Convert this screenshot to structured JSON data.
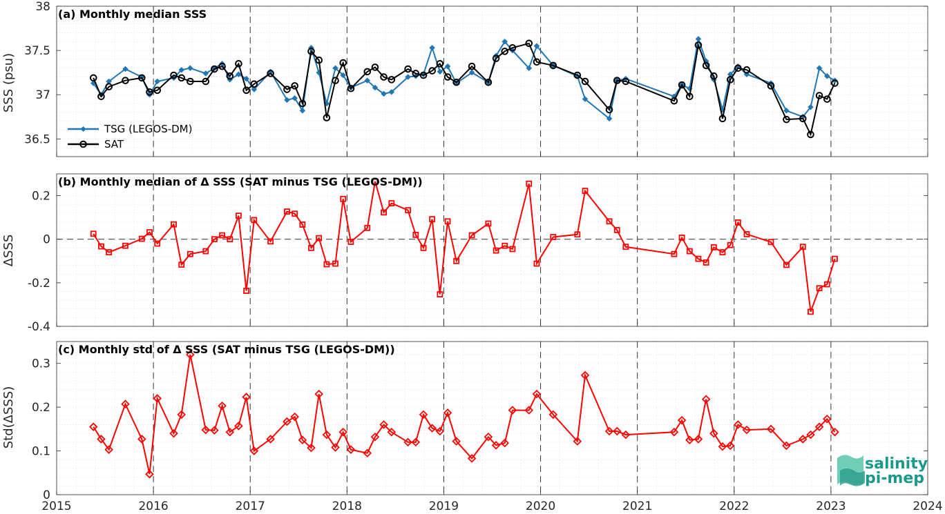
{
  "chart_data": [
    {
      "type": "line",
      "title": "(a) Monthly median SSS",
      "ylabel": "SSS (psu)",
      "xlim": [
        2015,
        2024
      ],
      "ylim": [
        36.3,
        38
      ],
      "yticks": [
        "36.5",
        "37",
        "37.5",
        "38"
      ],
      "legend_position": "lower-left",
      "grid": true,
      "series": [
        {
          "name": "TSG (LEGOS-DM)",
          "color": "#1f77b4",
          "marker": "diamond",
          "x": [
            2015.38,
            2015.46,
            2015.54,
            2015.71,
            2015.88,
            2015.96,
            2016.04,
            2016.21,
            2016.29,
            2016.38,
            2016.54,
            2016.63,
            2016.71,
            2016.79,
            2016.88,
            2016.96,
            2017.04,
            2017.21,
            2017.38,
            2017.46,
            2017.54,
            2017.63,
            2017.71,
            2017.79,
            2017.88,
            2017.96,
            2018.04,
            2018.21,
            2018.29,
            2018.38,
            2018.46,
            2018.63,
            2018.71,
            2018.79,
            2018.88,
            2018.96,
            2019.04,
            2019.13,
            2019.29,
            2019.46,
            2019.54,
            2019.63,
            2019.71,
            2019.88,
            2019.96,
            2020.13,
            2020.38,
            2020.46,
            2020.71,
            2020.79,
            2020.88,
            2021.38,
            2021.46,
            2021.54,
            2021.63,
            2021.71,
            2021.79,
            2021.88,
            2021.96,
            2022.04,
            2022.13,
            2022.38,
            2022.54,
            2022.71,
            2022.79,
            2022.88,
            2022.96,
            2023.04
          ],
          "y": [
            37.13,
            37.0,
            37.15,
            37.29,
            37.2,
            37.0,
            37.15,
            37.19,
            37.28,
            37.3,
            37.24,
            37.3,
            37.35,
            37.17,
            37.23,
            37.18,
            37.06,
            37.26,
            36.94,
            36.96,
            36.82,
            37.53,
            37.25,
            36.9,
            37.3,
            37.22,
            37.08,
            37.16,
            37.08,
            37.01,
            37.03,
            37.2,
            37.21,
            37.23,
            37.53,
            37.26,
            37.32,
            37.13,
            37.25,
            37.14,
            37.44,
            37.6,
            37.5,
            37.3,
            37.55,
            37.33,
            37.21,
            36.95,
            36.73,
            37.16,
            37.18,
            36.98,
            37.11,
            37.07,
            37.63,
            37.38,
            37.17,
            36.83,
            37.23,
            37.32,
            37.23,
            37.13,
            36.82,
            36.75,
            36.86,
            37.3,
            37.21,
            37.16
          ]
        },
        {
          "name": "SAT",
          "color": "#000000",
          "marker": "circle",
          "x": [
            2015.38,
            2015.46,
            2015.54,
            2015.71,
            2015.88,
            2015.96,
            2016.04,
            2016.21,
            2016.29,
            2016.38,
            2016.54,
            2016.63,
            2016.71,
            2016.79,
            2016.88,
            2016.96,
            2017.04,
            2017.21,
            2017.38,
            2017.46,
            2017.54,
            2017.63,
            2017.71,
            2017.79,
            2017.88,
            2017.96,
            2018.04,
            2018.21,
            2018.29,
            2018.38,
            2018.46,
            2018.63,
            2018.71,
            2018.79,
            2018.88,
            2018.96,
            2019.04,
            2019.13,
            2019.29,
            2019.46,
            2019.54,
            2019.63,
            2019.71,
            2019.88,
            2019.96,
            2020.13,
            2020.38,
            2020.46,
            2020.71,
            2020.79,
            2020.88,
            2021.38,
            2021.46,
            2021.54,
            2021.63,
            2021.71,
            2021.79,
            2021.88,
            2021.96,
            2022.04,
            2022.13,
            2022.38,
            2022.54,
            2022.71,
            2022.79,
            2022.88,
            2022.96,
            2023.04
          ],
          "y": [
            37.19,
            36.98,
            37.09,
            37.16,
            37.19,
            37.03,
            37.05,
            37.22,
            37.19,
            37.15,
            37.15,
            37.29,
            37.32,
            37.21,
            37.35,
            37.05,
            37.12,
            37.24,
            37.06,
            37.1,
            36.9,
            37.49,
            37.39,
            36.74,
            37.16,
            37.36,
            37.07,
            37.26,
            37.31,
            37.2,
            37.17,
            37.29,
            37.24,
            37.22,
            37.27,
            37.35,
            37.2,
            37.14,
            37.32,
            37.14,
            37.41,
            37.49,
            37.53,
            37.58,
            37.37,
            37.33,
            37.22,
            37.15,
            36.83,
            37.16,
            37.15,
            36.93,
            37.11,
            36.98,
            37.56,
            37.33,
            37.21,
            36.73,
            37.17,
            37.3,
            37.28,
            37.1,
            36.72,
            36.73,
            36.55,
            36.99,
            36.95,
            37.13
          ]
        }
      ]
    },
    {
      "type": "line",
      "title": "(b) Monthly median of Δ SSS (SAT minus TSG (LEGOS-DM))",
      "ylabel": "ΔSSS",
      "xlim": [
        2015,
        2024
      ],
      "ylim": [
        -0.4,
        0.3
      ],
      "yticks": [
        "-0.4",
        "-0.2",
        "0",
        "0.2"
      ],
      "zero_line": true,
      "grid": true,
      "series": [
        {
          "color": "#ff0000",
          "marker": "square",
          "x": [
            2015.38,
            2015.46,
            2015.54,
            2015.71,
            2015.88,
            2015.96,
            2016.04,
            2016.21,
            2016.29,
            2016.38,
            2016.54,
            2016.63,
            2016.71,
            2016.79,
            2016.88,
            2016.96,
            2017.04,
            2017.21,
            2017.38,
            2017.46,
            2017.54,
            2017.63,
            2017.71,
            2017.79,
            2017.88,
            2017.96,
            2018.04,
            2018.21,
            2018.29,
            2018.38,
            2018.46,
            2018.63,
            2018.71,
            2018.79,
            2018.88,
            2018.96,
            2019.04,
            2019.13,
            2019.29,
            2019.46,
            2019.54,
            2019.63,
            2019.71,
            2019.88,
            2019.96,
            2020.13,
            2020.38,
            2020.46,
            2020.71,
            2020.79,
            2020.88,
            2021.38,
            2021.46,
            2021.54,
            2021.63,
            2021.71,
            2021.79,
            2021.88,
            2021.96,
            2022.04,
            2022.13,
            2022.38,
            2022.54,
            2022.71,
            2022.79,
            2022.88,
            2022.96,
            2023.04
          ],
          "y": [
            0.025,
            -0.033,
            -0.06,
            -0.03,
            0.002,
            0.032,
            -0.02,
            0.068,
            -0.117,
            -0.068,
            -0.055,
            0.0,
            0.018,
            0.0,
            0.108,
            -0.237,
            0.088,
            -0.01,
            0.127,
            0.117,
            0.067,
            -0.04,
            0.005,
            -0.115,
            -0.112,
            0.185,
            -0.012,
            0.052,
            0.265,
            0.123,
            0.165,
            0.133,
            0.02,
            -0.04,
            0.092,
            -0.253,
            0.082,
            -0.1,
            0.018,
            0.072,
            -0.052,
            -0.03,
            -0.045,
            0.255,
            -0.112,
            0.01,
            0.022,
            0.222,
            0.082,
            0.042,
            -0.035,
            -0.068,
            0.007,
            -0.055,
            -0.09,
            -0.107,
            -0.037,
            -0.06,
            -0.027,
            0.077,
            0.023,
            -0.013,
            -0.118,
            -0.035,
            -0.333,
            -0.225,
            -0.207,
            -0.09
          ]
        }
      ]
    },
    {
      "type": "line",
      "title": "(c) Monthly std of Δ SSS (SAT minus TSG (LEGOS-DM))",
      "ylabel": "Std(ΔSSS)",
      "xlabel": "",
      "xlim": [
        2015,
        2024
      ],
      "ylim": [
        0,
        0.35
      ],
      "yticks": [
        "0",
        "0.1",
        "0.2",
        "0.3"
      ],
      "xticks": [
        "2015",
        "2016",
        "2017",
        "2018",
        "2019",
        "2020",
        "2021",
        "2022",
        "2023",
        "2024"
      ],
      "grid": true,
      "series": [
        {
          "color": "#ff0000",
          "marker": "diamond",
          "x": [
            2015.38,
            2015.46,
            2015.54,
            2015.71,
            2015.88,
            2015.96,
            2016.04,
            2016.21,
            2016.29,
            2016.38,
            2016.54,
            2016.63,
            2016.71,
            2016.79,
            2016.88,
            2016.96,
            2017.04,
            2017.21,
            2017.38,
            2017.46,
            2017.54,
            2017.63,
            2017.71,
            2017.79,
            2017.88,
            2017.96,
            2018.04,
            2018.21,
            2018.29,
            2018.38,
            2018.46,
            2018.63,
            2018.71,
            2018.79,
            2018.88,
            2018.96,
            2019.04,
            2019.13,
            2019.29,
            2019.46,
            2019.54,
            2019.63,
            2019.71,
            2019.88,
            2019.96,
            2020.13,
            2020.38,
            2020.46,
            2020.71,
            2020.79,
            2020.88,
            2021.38,
            2021.46,
            2021.54,
            2021.63,
            2021.71,
            2021.79,
            2021.88,
            2021.96,
            2022.04,
            2022.13,
            2022.38,
            2022.54,
            2022.71,
            2022.79,
            2022.88,
            2022.96,
            2023.04
          ],
          "y": [
            0.155,
            0.127,
            0.103,
            0.207,
            0.127,
            0.047,
            0.22,
            0.14,
            0.183,
            0.32,
            0.148,
            0.147,
            0.203,
            0.143,
            0.157,
            0.223,
            0.1,
            0.127,
            0.167,
            0.178,
            0.125,
            0.107,
            0.23,
            0.137,
            0.108,
            0.143,
            0.103,
            0.095,
            0.132,
            0.16,
            0.143,
            0.12,
            0.12,
            0.183,
            0.152,
            0.145,
            0.187,
            0.122,
            0.083,
            0.132,
            0.113,
            0.118,
            0.193,
            0.193,
            0.23,
            0.183,
            0.122,
            0.273,
            0.145,
            0.145,
            0.137,
            0.143,
            0.17,
            0.125,
            0.127,
            0.218,
            0.14,
            0.11,
            0.112,
            0.16,
            0.148,
            0.15,
            0.112,
            0.127,
            0.137,
            0.155,
            0.173,
            0.143
          ]
        }
      ]
    }
  ],
  "logo": {
    "line1": "salinity",
    "line2": "pi-mep"
  }
}
